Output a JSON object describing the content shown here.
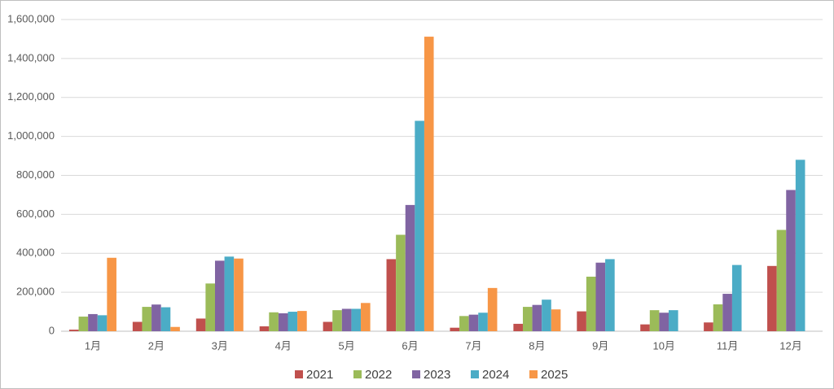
{
  "chart_data": {
    "type": "bar",
    "categories": [
      "1月",
      "2月",
      "3月",
      "4月",
      "5月",
      "6月",
      "7月",
      "8月",
      "9月",
      "10月",
      "11月",
      "12月"
    ],
    "series": [
      {
        "name": "2021",
        "color": "#c0504d",
        "values": [
          8000,
          48000,
          65000,
          25000,
          48000,
          370000,
          18000,
          38000,
          102000,
          35000,
          45000,
          335000
        ]
      },
      {
        "name": "2022",
        "color": "#9bbb59",
        "values": [
          75000,
          125000,
          245000,
          97000,
          108000,
          495000,
          78000,
          125000,
          280000,
          108000,
          138000,
          520000
        ]
      },
      {
        "name": "2023",
        "color": "#8064a2",
        "values": [
          88000,
          137000,
          362000,
          92000,
          115000,
          648000,
          85000,
          135000,
          352000,
          95000,
          192000,
          725000
        ]
      },
      {
        "name": "2024",
        "color": "#4bacc6",
        "values": [
          82000,
          123000,
          383000,
          100000,
          115000,
          1080000,
          95000,
          162000,
          370000,
          108000,
          340000,
          880000
        ]
      },
      {
        "name": "2025",
        "color": "#f79646",
        "values": [
          377000,
          22000,
          373000,
          104000,
          145000,
          1512000,
          222000,
          112000,
          null,
          null,
          null,
          null
        ]
      }
    ],
    "ylim": [
      0,
      1600000
    ],
    "yticks": [
      0,
      {
        "value": 200000,
        "label": "200,000"
      },
      {
        "value": 400000,
        "label": "400,000"
      },
      {
        "value": 600000,
        "label": "600,000"
      },
      {
        "value": 800000,
        "label": "800,000"
      },
      {
        "value": 1000000,
        "label": "1,000,000"
      },
      {
        "value": 1200000,
        "label": "1,200,000"
      },
      {
        "value": 1400000,
        "label": "1,400,000"
      },
      {
        "value": 1600000,
        "label": "1,600,000"
      }
    ],
    "grid": true,
    "legend": "bottom"
  }
}
